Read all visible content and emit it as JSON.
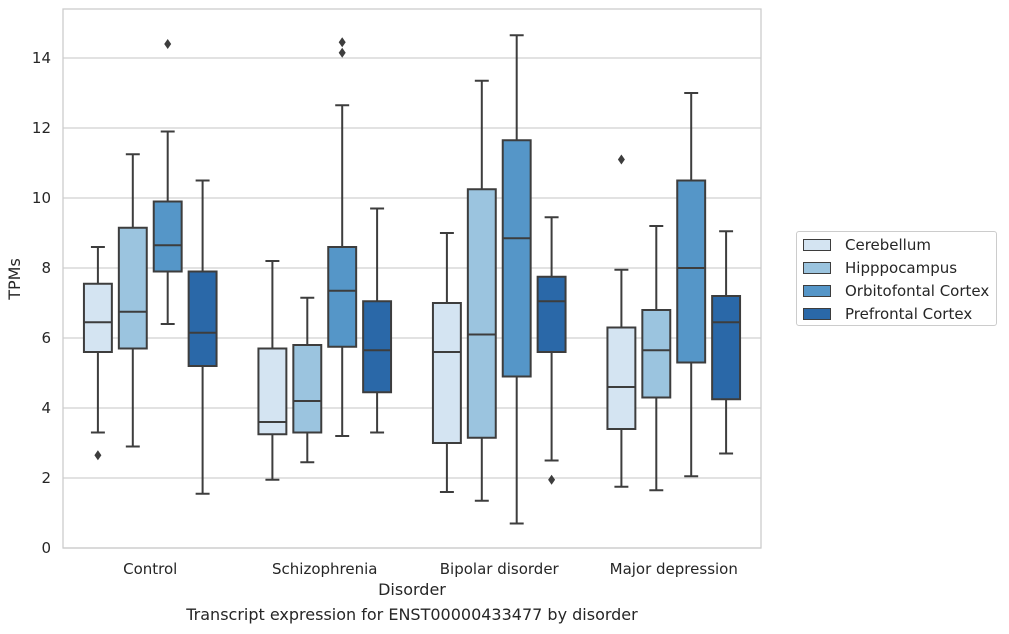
{
  "caption": "Transcript expression for ENST00000433477 by disorder",
  "chart_data": {
    "type": "box",
    "xlabel": "Disorder",
    "ylabel": "TPMs",
    "ylim": [
      0,
      15.4
    ],
    "yticks": [
      0,
      2,
      4,
      6,
      8,
      10,
      12,
      14
    ],
    "grid": "horizontal",
    "legend_position": "right",
    "categories": [
      "Control",
      "Schizophrenia",
      "Bipolar disorder",
      "Major depression"
    ],
    "series": [
      {
        "name": "Cerebellum",
        "color": "#d4e4f2",
        "boxes": [
          {
            "whislo": 3.3,
            "q1": 5.6,
            "med": 6.45,
            "q3": 7.55,
            "whishi": 8.6,
            "fliers": [
              2.65
            ]
          },
          {
            "whislo": 1.95,
            "q1": 3.25,
            "med": 3.6,
            "q3": 5.7,
            "whishi": 8.2,
            "fliers": []
          },
          {
            "whislo": 1.6,
            "q1": 3.0,
            "med": 5.6,
            "q3": 7.0,
            "whishi": 9.0,
            "fliers": []
          },
          {
            "whislo": 1.75,
            "q1": 3.4,
            "med": 4.6,
            "q3": 6.3,
            "whishi": 7.95,
            "fliers": [
              11.1
            ]
          }
        ]
      },
      {
        "name": "Hipppocampus",
        "color": "#9bc4df",
        "boxes": [
          {
            "whislo": 2.9,
            "q1": 5.7,
            "med": 6.75,
            "q3": 9.15,
            "whishi": 11.25,
            "fliers": []
          },
          {
            "whislo": 2.45,
            "q1": 3.3,
            "med": 4.2,
            "q3": 5.8,
            "whishi": 7.15,
            "fliers": []
          },
          {
            "whislo": 1.35,
            "q1": 3.15,
            "med": 6.1,
            "q3": 10.25,
            "whishi": 13.35,
            "fliers": []
          },
          {
            "whislo": 1.65,
            "q1": 4.3,
            "med": 5.65,
            "q3": 6.8,
            "whishi": 9.2,
            "fliers": []
          }
        ]
      },
      {
        "name": "Orbitofontal Cortex",
        "color": "#5596c8",
        "boxes": [
          {
            "whislo": 6.4,
            "q1": 7.9,
            "med": 8.65,
            "q3": 9.9,
            "whishi": 11.9,
            "fliers": [
              14.4
            ]
          },
          {
            "whislo": 3.2,
            "q1": 5.75,
            "med": 7.35,
            "q3": 8.6,
            "whishi": 12.65,
            "fliers": [
              14.15,
              14.45
            ]
          },
          {
            "whislo": 0.7,
            "q1": 4.9,
            "med": 8.85,
            "q3": 11.65,
            "whishi": 14.65,
            "fliers": []
          },
          {
            "whislo": 2.05,
            "q1": 5.3,
            "med": 8.0,
            "q3": 10.5,
            "whishi": 13.0,
            "fliers": []
          }
        ]
      },
      {
        "name": "Prefrontal Cortex",
        "color": "#2a68a8",
        "boxes": [
          {
            "whislo": 1.55,
            "q1": 5.2,
            "med": 6.15,
            "q3": 7.9,
            "whishi": 10.5,
            "fliers": []
          },
          {
            "whislo": 3.3,
            "q1": 4.45,
            "med": 5.65,
            "q3": 7.05,
            "whishi": 9.7,
            "fliers": []
          },
          {
            "whislo": 2.5,
            "q1": 5.6,
            "med": 7.05,
            "q3": 7.75,
            "whishi": 9.45,
            "fliers": [
              1.95
            ]
          },
          {
            "whislo": 2.7,
            "q1": 4.25,
            "med": 6.45,
            "q3": 7.2,
            "whishi": 9.05,
            "fliers": []
          }
        ]
      }
    ]
  }
}
